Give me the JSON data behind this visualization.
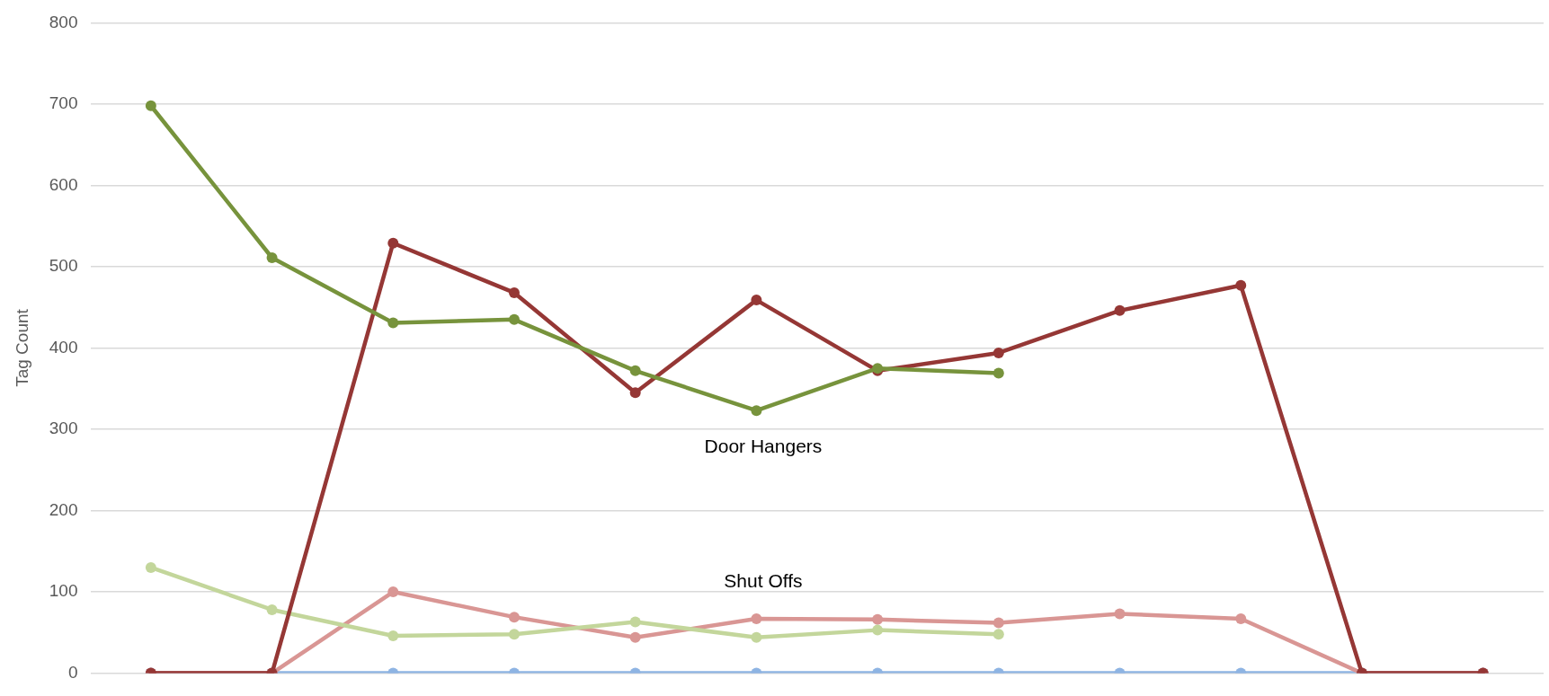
{
  "chart_data": {
    "type": "line",
    "ylabel": "Tag Count",
    "categories": [
      null,
      null,
      null,
      null,
      null,
      null,
      null,
      null,
      null,
      null,
      null,
      null
    ],
    "series": [
      {
        "color": "#8eb4e3",
        "values": [
          0,
          0,
          0,
          0,
          0,
          0,
          0,
          0,
          0,
          0,
          0,
          0
        ]
      },
      {
        "color": "#d99694",
        "values": [
          0,
          0,
          100,
          69,
          44,
          67,
          66,
          62,
          73,
          67,
          0,
          0
        ]
      },
      {
        "color": "#c3d69b",
        "values": [
          130,
          78,
          46,
          48,
          63,
          44,
          53,
          48,
          null,
          null,
          null,
          null
        ]
      },
      {
        "color": "#953735",
        "values": [
          0,
          0,
          529,
          468,
          345,
          459,
          372,
          394,
          446,
          477,
          0,
          0
        ]
      },
      {
        "color": "#77933c",
        "values": [
          698,
          511,
          431,
          435,
          372,
          323,
          375,
          369,
          null,
          null,
          null,
          null
        ]
      }
    ],
    "ylim": [
      0,
      800
    ],
    "yticks": [
      0,
      100,
      200,
      300,
      400,
      500,
      600,
      700,
      800
    ],
    "grid": "y",
    "marker": "circle",
    "line_style": "solid",
    "legend": false,
    "annotations": [
      "Door Hangers",
      "Shut Offs"
    ]
  }
}
